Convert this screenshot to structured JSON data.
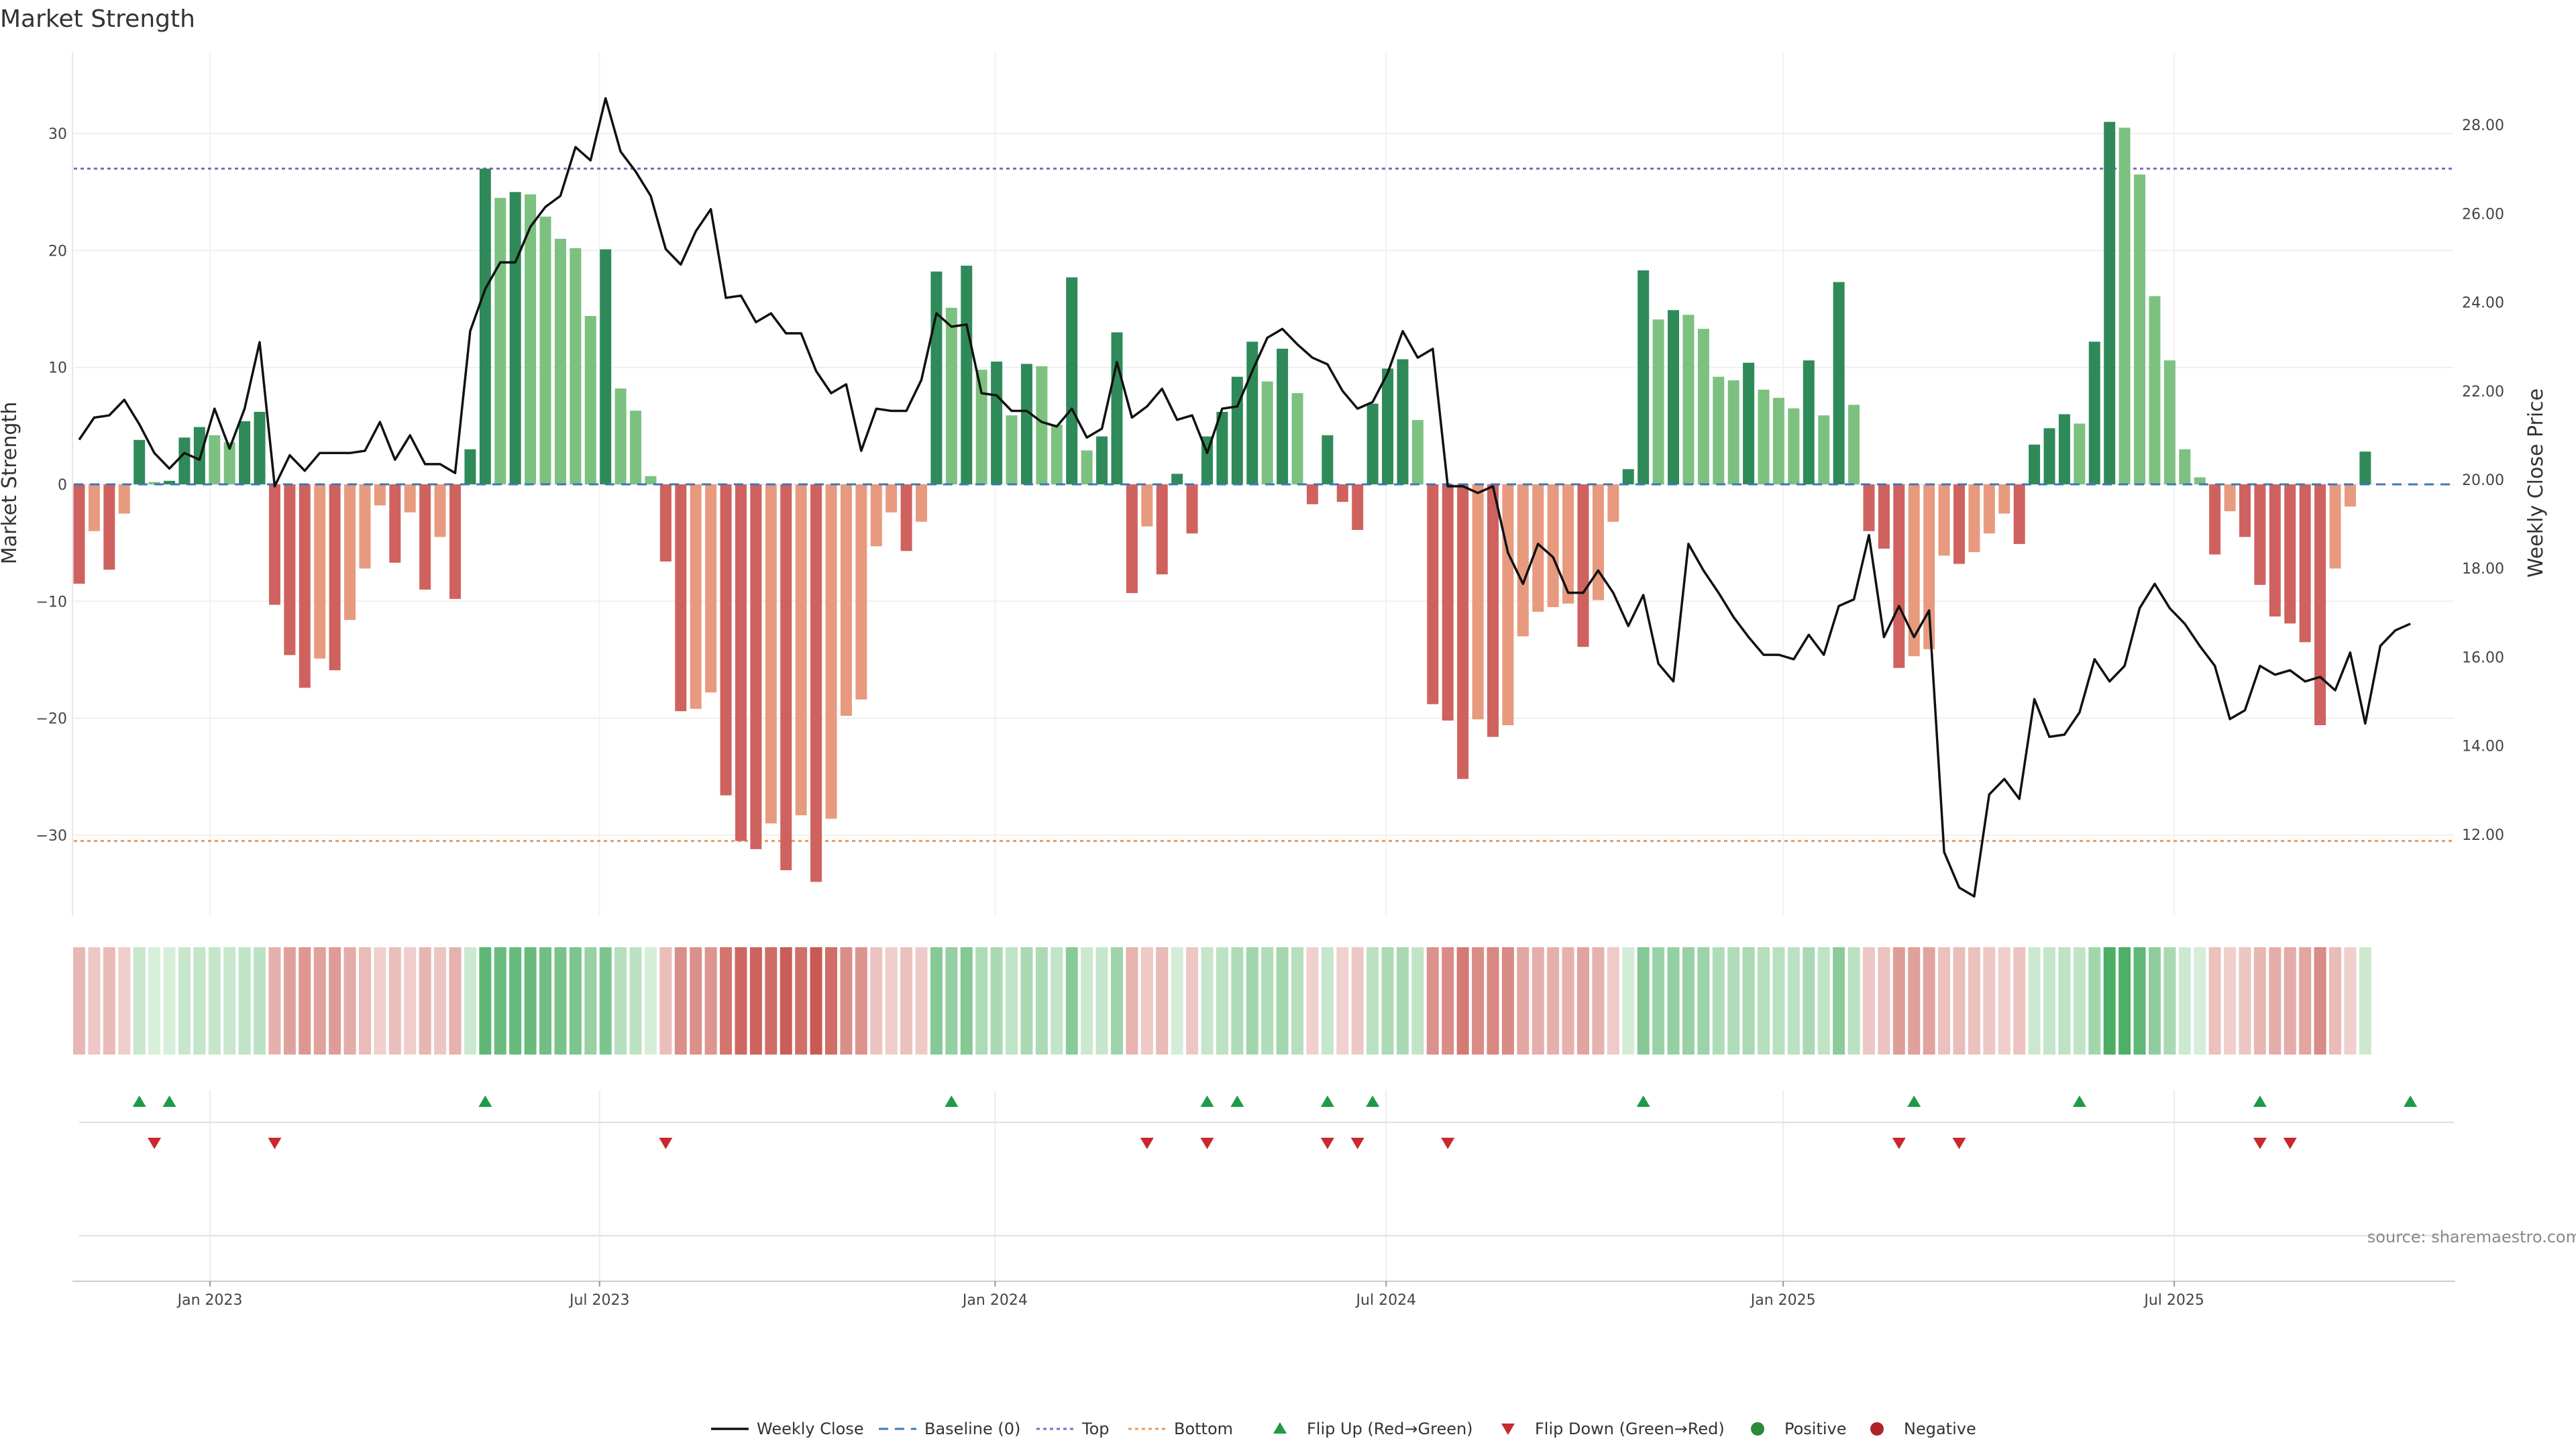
{
  "chart_data": {
    "type": "bar",
    "title": "Market Strength",
    "ylabel_left": "Market Strength",
    "ylabel_right": "Weekly Close Price",
    "ylim_left": [
      -37,
      37
    ],
    "ylim_right": [
      10.3,
      29.5
    ],
    "yticks_left": [
      30,
      20,
      10,
      0,
      -10,
      -20,
      -30
    ],
    "yticks_right": [
      "28.00",
      "26.00",
      "24.00",
      "22.00",
      "20.00",
      "18.00",
      "16.00",
      "14.00",
      "12.00"
    ],
    "x_tick_labels": [
      {
        "label": "Jan 2023",
        "index": 8.7
      },
      {
        "label": "Jul 2023",
        "index": 34.6
      },
      {
        "label": "Jan 2024",
        "index": 60.9
      },
      {
        "label": "Jul 2024",
        "index": 86.9
      },
      {
        "label": "Jan 2025",
        "index": 113.3
      },
      {
        "label": "Jul 2025",
        "index": 139.3
      }
    ],
    "top_level": 27,
    "bottom_level": -30.5,
    "strength_values": [
      -8.5,
      -4,
      -7.3,
      -2.5,
      3.8,
      0.2,
      0.3,
      4,
      4.9,
      4.2,
      3.6,
      5.4,
      6.2,
      -10.3,
      -14.6,
      -17.4,
      -14.9,
      -15.9,
      -11.6,
      -7.2,
      -1.8,
      -6.7,
      -2.4,
      -9,
      -4.5,
      -9.8,
      3,
      27,
      24.5,
      25,
      24.8,
      22.9,
      21,
      20.2,
      14.4,
      20.1,
      8.2,
      6.3,
      0.7,
      -6.6,
      -19.4,
      -19.2,
      -17.8,
      -26.6,
      -30.5,
      -31.2,
      -29,
      -33,
      -28.3,
      -34,
      -28.6,
      -19.8,
      -18.4,
      -5.3,
      -2.4,
      -5.7,
      -3.2,
      18.2,
      15.1,
      18.7,
      9.8,
      10.5,
      5.9,
      10.3,
      10.1,
      5.1,
      17.7,
      2.9,
      4.1,
      13,
      -9.3,
      -3.6,
      -7.7,
      0.9,
      -4.2,
      4.1,
      6.2,
      9.2,
      12.2,
      8.8,
      11.6,
      7.8,
      -1.7,
      4.2,
      -1.5,
      -3.9,
      6.9,
      9.9,
      10.7,
      5.5,
      -18.8,
      -20.2,
      -25.2,
      -20.1,
      -21.6,
      -20.6,
      -13,
      -10.9,
      -10.5,
      -10.2,
      -13.9,
      -9.9,
      -3.2,
      1.3,
      18.3,
      14.1,
      14.9,
      14.5,
      13.3,
      9.2,
      8.9,
      10.4,
      8.1,
      7.4,
      6.5,
      10.6,
      5.9,
      17.3,
      6.8,
      -4,
      -5.5,
      -15.7,
      -14.7,
      -14.1,
      -6.1,
      -6.8,
      -5.8,
      -4.2,
      -2.5,
      -5.1,
      3.4,
      4.8,
      6,
      5.2,
      12.2,
      31,
      30.5,
      26.5,
      16.1,
      10.6,
      3,
      0.6,
      -6,
      -2.3,
      -4.5,
      -8.6,
      -11.3,
      -11.9,
      -13.5,
      -20.6,
      -7.2,
      -1.9,
      2.8
    ],
    "price_values": [
      20.9,
      21.4,
      21.45,
      21.8,
      21.25,
      20.6,
      20.25,
      20.6,
      20.45,
      21.6,
      20.7,
      21.6,
      23.1,
      19.85,
      20.55,
      20.2,
      20.6,
      20.6,
      20.6,
      20.65,
      21.3,
      20.45,
      21,
      20.35,
      20.35,
      20.15,
      23.35,
      24.3,
      24.9,
      24.9,
      25.7,
      26.15,
      26.4,
      27.5,
      27.2,
      28.6,
      27.4,
      26.95,
      26.4,
      25.2,
      24.85,
      25.6,
      26.1,
      24.1,
      24.15,
      23.55,
      23.75,
      23.3,
      23.3,
      22.45,
      21.95,
      22.15,
      20.65,
      21.6,
      21.55,
      21.55,
      22.25,
      23.75,
      23.45,
      23.5,
      21.95,
      21.9,
      21.55,
      21.55,
      21.3,
      21.2,
      21.6,
      20.95,
      21.15,
      22.65,
      21.4,
      21.65,
      22.05,
      21.35,
      21.45,
      20.6,
      21.6,
      21.65,
      22.45,
      23.2,
      23.4,
      23.05,
      22.75,
      22.6,
      22,
      21.6,
      21.75,
      22.4,
      23.35,
      22.75,
      22.95,
      19.85,
      19.85,
      19.7,
      19.85,
      18.35,
      17.65,
      18.55,
      18.25,
      17.45,
      17.45,
      17.95,
      17.45,
      16.7,
      17.4,
      15.85,
      15.45,
      18.55,
      17.95,
      17.45,
      16.9,
      16.45,
      16.05,
      16.05,
      15.95,
      16.5,
      16.05,
      17.15,
      17.3,
      18.75,
      16.45,
      17.15,
      16.45,
      17.05,
      11.6,
      10.8,
      10.6,
      12.9,
      13.25,
      12.8,
      15.05,
      14.2,
      14.25,
      14.75,
      15.95,
      15.45,
      15.8,
      17.1,
      17.65,
      17.1,
      16.75,
      16.25,
      15.8,
      14.6,
      14.8,
      15.8,
      15.6,
      15.7,
      15.45,
      15.55,
      15.25,
      16.1,
      14.5,
      16.25,
      16.6,
      16.75
    ],
    "flip_up_indices": [
      4,
      6,
      27,
      58,
      75,
      77,
      83,
      86,
      104,
      122,
      133,
      145,
      155
    ],
    "flip_down_indices": [
      5,
      13,
      39,
      71,
      75,
      83,
      85,
      91,
      121,
      125,
      145,
      147
    ],
    "legend": [
      {
        "label": "Weekly Close",
        "type": "line",
        "color": "#111111"
      },
      {
        "label": "Baseline (0)",
        "type": "dash",
        "color": "#3b78b8"
      },
      {
        "label": "Top",
        "type": "dot",
        "color": "#7b6cc0"
      },
      {
        "label": "Bottom",
        "type": "dot",
        "color": "#e89a5a"
      },
      {
        "label": "Flip Up (Red→Green)",
        "type": "tri-up",
        "color": "#1e9a4a"
      },
      {
        "label": "Flip Down (Green→Red)",
        "type": "tri-down",
        "color": "#c8282e"
      },
      {
        "label": "Positive",
        "type": "circle",
        "color": "#2a8a3a"
      },
      {
        "label": "Negative",
        "type": "circle",
        "color": "#b02328"
      }
    ],
    "colors": {
      "green_strong": "#2f8a59",
      "green_light": "#7cc180",
      "red_strong": "#cf625e",
      "red_light": "#e89a7e",
      "top_line": "#7b6cc0",
      "bottom_line": "#e89a5a",
      "baseline": "#3b78b8"
    }
  },
  "source": "source: sharemaestro.com"
}
